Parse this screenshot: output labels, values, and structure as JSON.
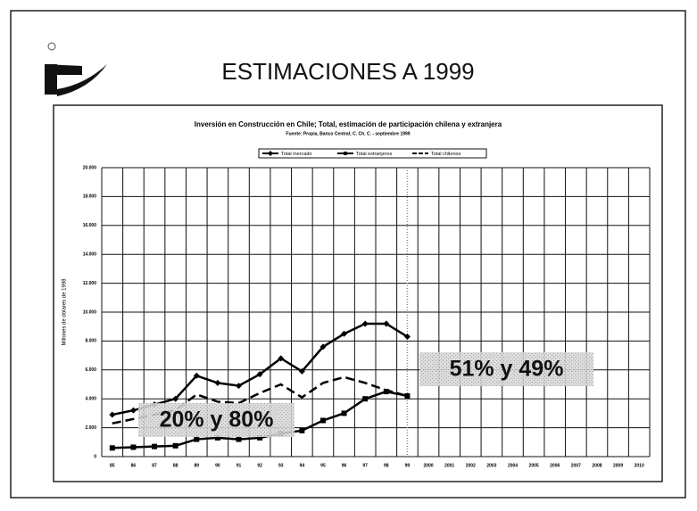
{
  "heading": "ESTIMACIONES A 1999",
  "chart_data": {
    "type": "line",
    "title": "Inversión en Construcción en Chile; Total, estimación de participación chilena y extranjera",
    "subtitle": "Fuente: Propia, Banco Central; C. Ch. C. - septiembre 1999",
    "y_label": "Millones de dólares de 1998",
    "categories": [
      "85",
      "86",
      "87",
      "88",
      "89",
      "90",
      "91",
      "92",
      "93",
      "94",
      "95",
      "96",
      "97",
      "98",
      "99",
      "2000",
      "2001",
      "2002",
      "2003",
      "2004",
      "2005",
      "2006",
      "2007",
      "2008",
      "2009",
      "2010"
    ],
    "series": [
      {
        "name": "Total mercado",
        "color": "#000000",
        "marker": "diamond",
        "dashed": false,
        "values": [
          2900,
          3200,
          3600,
          4000,
          5600,
          5100,
          4900,
          5700,
          6800,
          5900,
          7600,
          8500,
          9200,
          9200,
          8300,
          null,
          null,
          null,
          null,
          null,
          null,
          null,
          null,
          null,
          null,
          null
        ]
      },
      {
        "name": "Total extranjeros",
        "color": "#000000",
        "marker": "square",
        "dashed": false,
        "values": [
          600,
          650,
          700,
          750,
          1200,
          1300,
          1200,
          1300,
          1600,
          1800,
          2500,
          3000,
          4000,
          4500,
          4200,
          null,
          null,
          null,
          null,
          null,
          null,
          null,
          null,
          null,
          null,
          null
        ]
      },
      {
        "name": "Total chilenos",
        "color": "#000000",
        "marker": "none",
        "dashed": true,
        "values": [
          2300,
          2600,
          2900,
          3200,
          4300,
          3800,
          3700,
          4400,
          5000,
          4100,
          5100,
          5500,
          5100,
          4600,
          4200,
          null,
          null,
          null,
          null,
          null,
          null,
          null,
          null,
          null,
          null,
          null
        ]
      }
    ],
    "ylim": [
      0,
      20000
    ],
    "yticks": [
      0,
      {
        "value": 2000,
        "label": "2.000"
      },
      {
        "value": 4000,
        "label": "4.000"
      },
      {
        "value": 6000,
        "label": "6.000"
      },
      {
        "value": 8000,
        "label": "8.000"
      },
      {
        "value": 10000,
        "label": "10.000"
      },
      {
        "value": 12000,
        "label": "12.000"
      },
      {
        "value": 14000,
        "label": "14.000"
      },
      {
        "value": 16000,
        "label": "16.000"
      },
      {
        "value": 18000,
        "label": "18.000"
      },
      {
        "value": 20000,
        "label": "20.000"
      }
    ],
    "grid": true,
    "annotations": [
      "20% y 80%",
      "51% y 49%"
    ]
  }
}
